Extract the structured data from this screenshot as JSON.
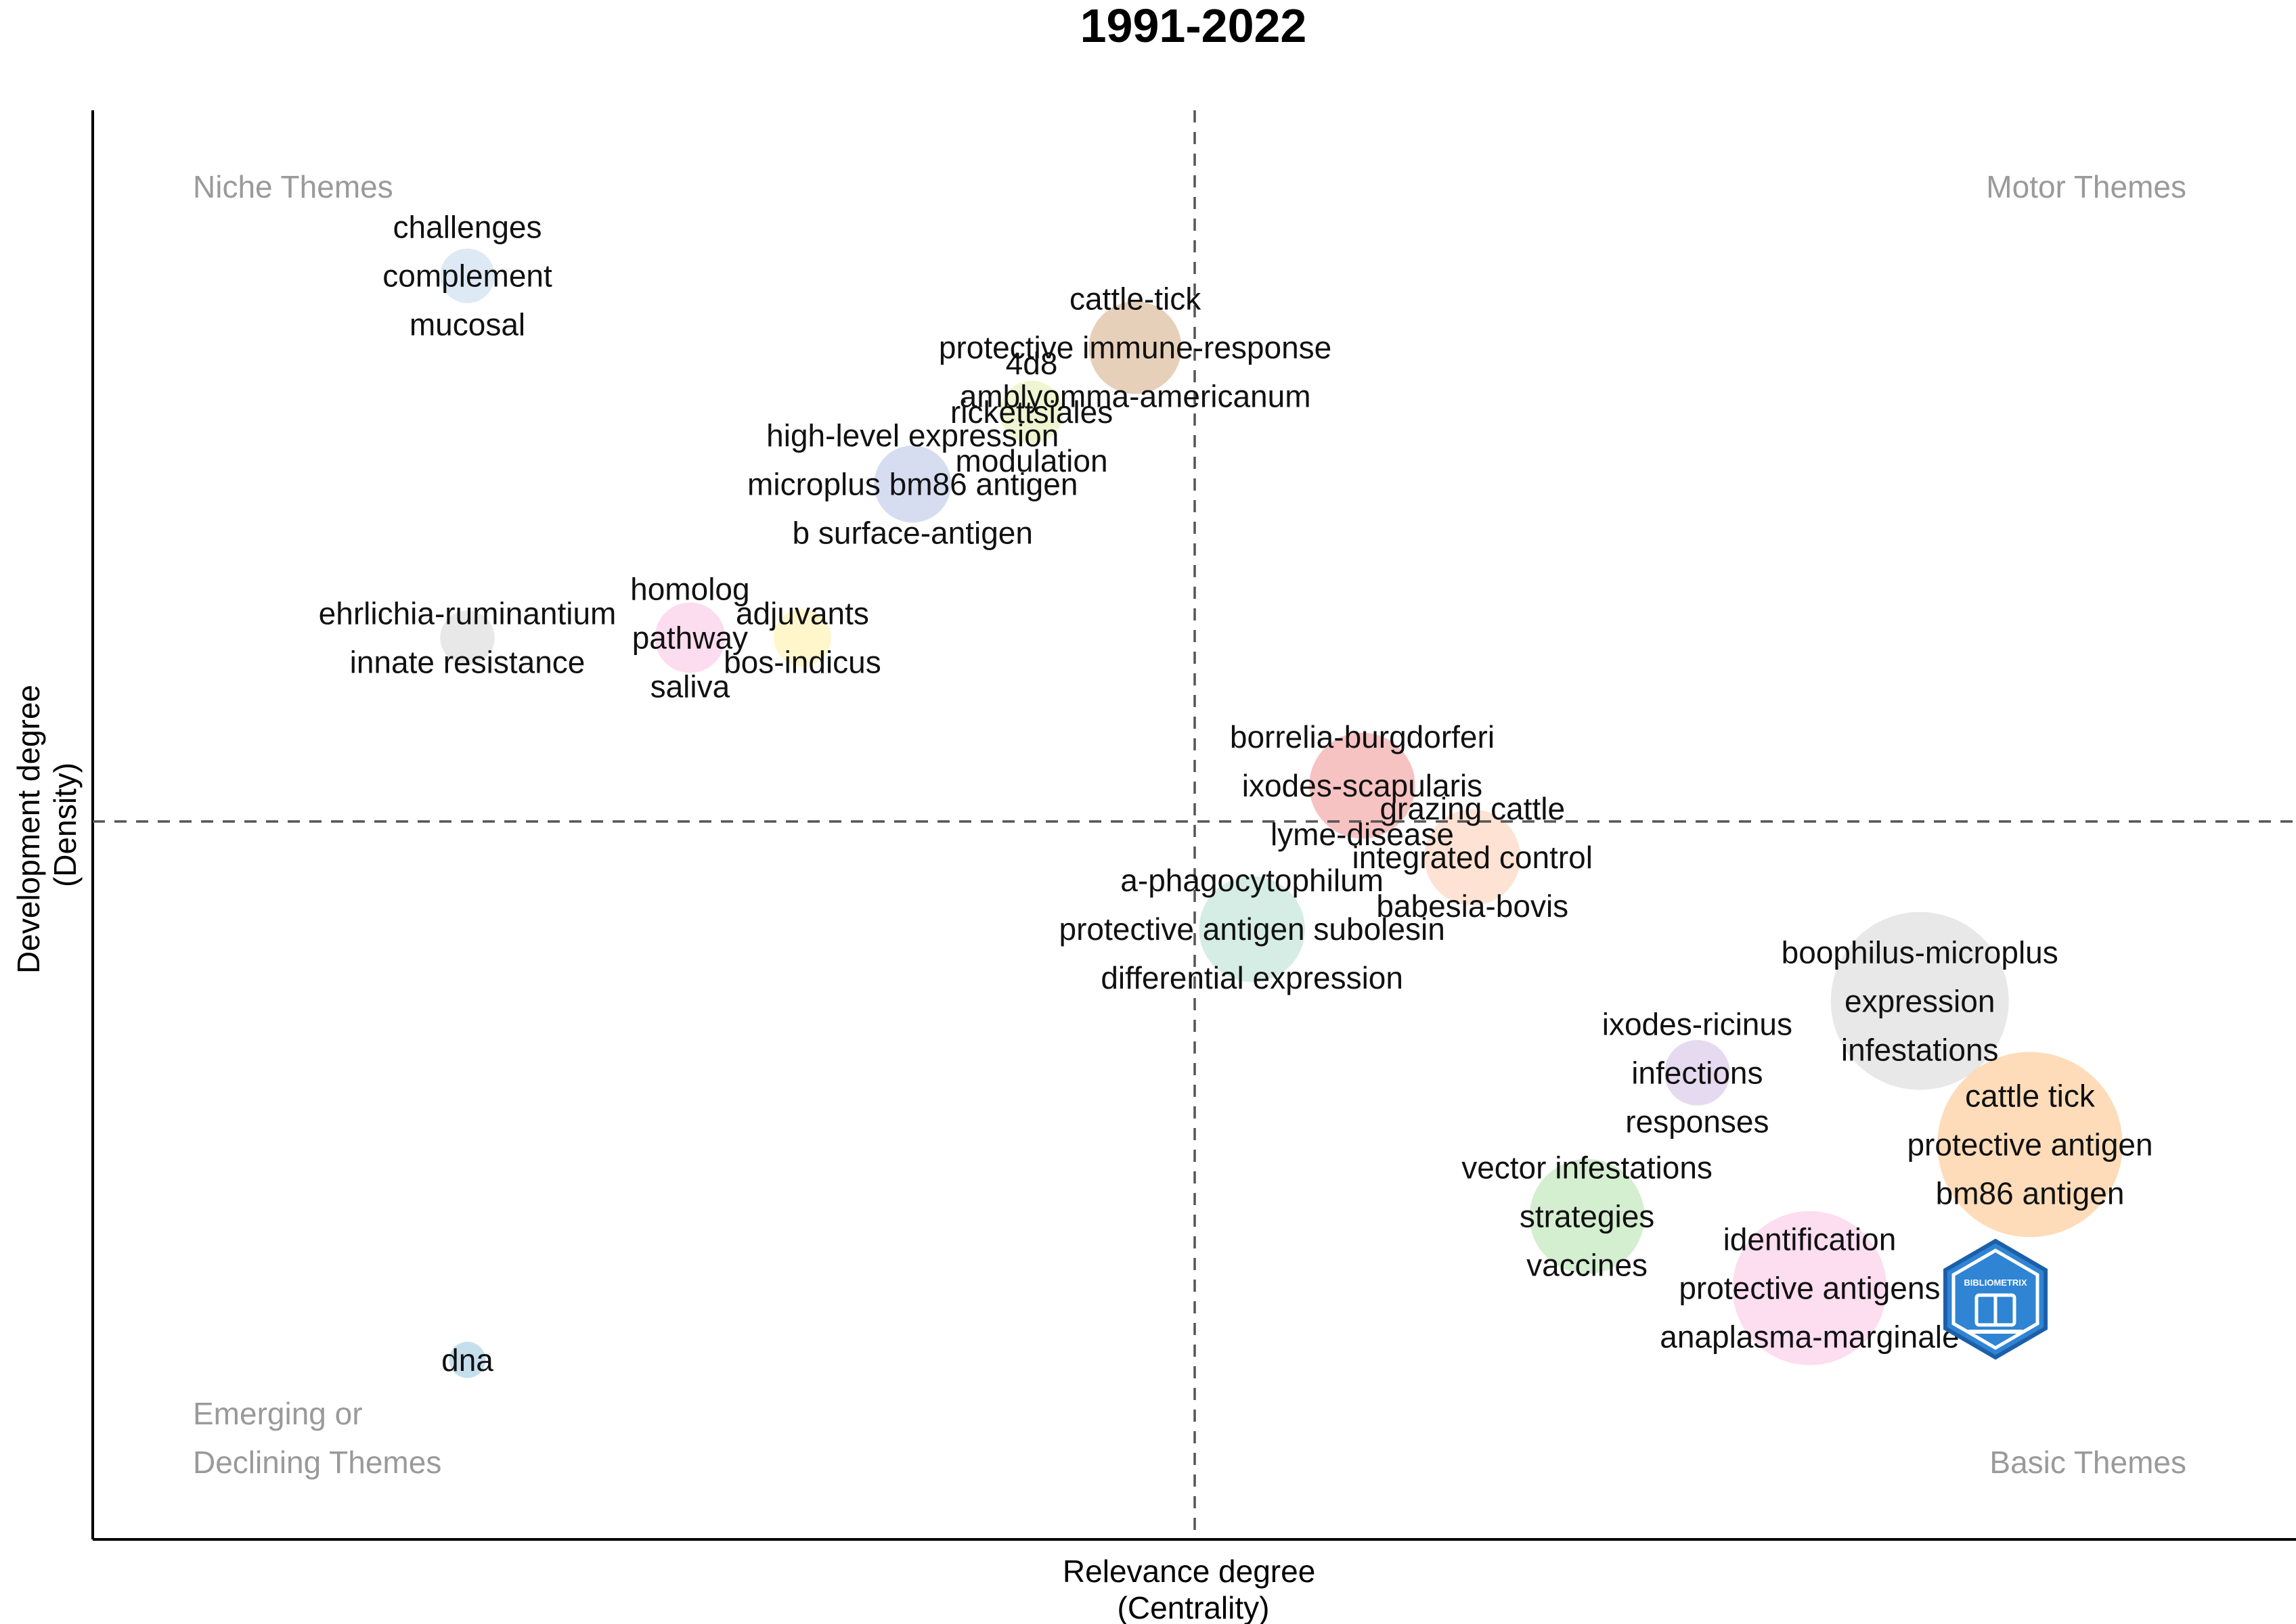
{
  "chart_data": {
    "type": "scatter",
    "title": "1991-2022",
    "xlabel": [
      "Relevance degree",
      "(Centrality)"
    ],
    "ylabel": [
      "Development degree",
      "(Density)"
    ],
    "xlim": [
      0,
      100
    ],
    "ylim": [
      0,
      100
    ],
    "x_divider": 50,
    "y_divider": 50,
    "quadrant_labels": {
      "top_left": [
        "Niche Themes"
      ],
      "top_right": [
        "Motor Themes"
      ],
      "bottom_left": [
        "Emerging or",
        "Declining Themes"
      ],
      "bottom_right": [
        "Basic Themes"
      ]
    },
    "clusters": [
      {
        "x": 17.0,
        "y": 88.0,
        "size": 0.45,
        "color": "#c6dbef",
        "words": [
          "challenges",
          "complement",
          "mucosal"
        ]
      },
      {
        "x": 47.3,
        "y": 83.0,
        "size": 1.3,
        "color": "#d7b08c",
        "words": [
          "cattle-tick",
          "protective immune-response",
          "amblyomma-americanum"
        ]
      },
      {
        "x": 42.6,
        "y": 78.5,
        "size": 0.6,
        "color": "#e5efb0",
        "words": [
          "4d8",
          "rickettsiales",
          "modulation"
        ]
      },
      {
        "x": 37.2,
        "y": 73.5,
        "size": 0.9,
        "color": "#bcc7e6",
        "words": [
          "high-level expression",
          "microplus bm86 antigen",
          "b surface-antigen"
        ]
      },
      {
        "x": 17.0,
        "y": 62.8,
        "size": 0.45,
        "color": "#d9d9d9",
        "words": [
          "ehrlichia-ruminantium",
          "innate resistance"
        ]
      },
      {
        "x": 27.1,
        "y": 62.8,
        "size": 0.75,
        "color": "#f8c6e4",
        "words": [
          "homolog",
          "pathway",
          "saliva"
        ]
      },
      {
        "x": 32.2,
        "y": 62.8,
        "size": 0.5,
        "color": "#fff2a8",
        "words": [
          "adjuvants",
          "bos-indicus"
        ]
      },
      {
        "x": 57.6,
        "y": 52.5,
        "size": 1.7,
        "color": "#f29a9a",
        "words": [
          "borrelia-burgdorferi",
          "ixodes-scapularis",
          "lyme-disease"
        ]
      },
      {
        "x": 62.6,
        "y": 47.5,
        "size": 1.4,
        "color": "#fdd0b8",
        "words": [
          "grazing cattle",
          "integrated control",
          "babesia-bovis"
        ]
      },
      {
        "x": 52.6,
        "y": 42.5,
        "size": 1.7,
        "color": "#b9e1d4",
        "words": [
          "a-phagocytophilum",
          "protective antigen subolesin",
          "differential expression"
        ]
      },
      {
        "x": 82.9,
        "y": 37.5,
        "size": 4.8,
        "color": "#d9d9d9",
        "words": [
          "boophilus-microplus",
          "expression",
          "infestations"
        ]
      },
      {
        "x": 72.8,
        "y": 32.5,
        "size": 0.65,
        "color": "#d4c1e4",
        "words": [
          "ixodes-ricinus",
          "infections",
          "responses"
        ]
      },
      {
        "x": 87.9,
        "y": 27.5,
        "size": 5.2,
        "color": "#fdc58a",
        "words": [
          "cattle tick",
          "protective antigen",
          "bm86 antigen"
        ]
      },
      {
        "x": 67.8,
        "y": 22.5,
        "size": 2.0,
        "color": "#b7e3b1",
        "words": [
          "vector infestations",
          "strategies",
          "vaccines"
        ]
      },
      {
        "x": 77.9,
        "y": 17.5,
        "size": 3.6,
        "color": "#fbc6e6",
        "words": [
          "identification",
          "protective antigens",
          "anaplasma-marginale"
        ]
      },
      {
        "x": 17.0,
        "y": 12.5,
        "size": 0.2,
        "color": "#9ecae1",
        "words": [
          "dna"
        ]
      }
    ]
  },
  "logo": {
    "text": "BIBLIOMETRIX",
    "colors": [
      "#2f84d4",
      "#1c5fa8"
    ]
  }
}
